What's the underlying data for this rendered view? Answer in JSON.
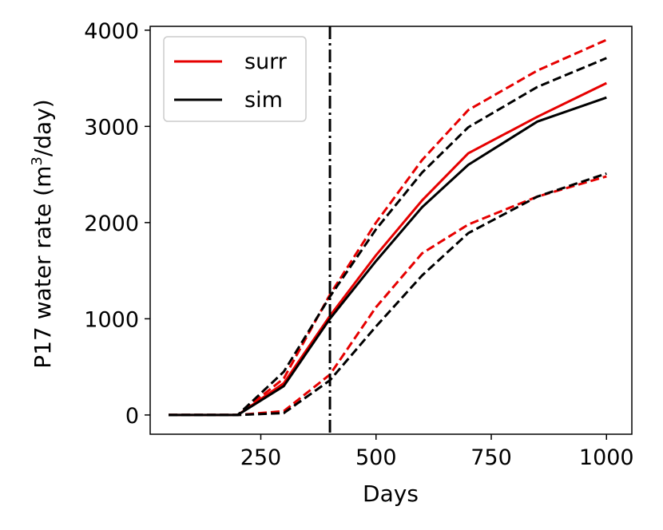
{
  "chart_data": {
    "type": "line",
    "title": "",
    "xlabel": "Days",
    "ylabel_prefix": "P17 water rate (m",
    "ylabel_sup": "3",
    "ylabel_suffix": "/day)",
    "xlim": [
      10,
      1055
    ],
    "ylim": [
      -200,
      4040
    ],
    "xticks": [
      250,
      500,
      750,
      1000
    ],
    "xtick_labels": [
      "250",
      "500",
      "750",
      "1000"
    ],
    "yticks": [
      0,
      1000,
      2000,
      3000,
      4000
    ],
    "ytick_labels": [
      "0",
      "1000",
      "2000",
      "3000",
      "4000"
    ],
    "vline": {
      "x": 400,
      "style": "dashdot",
      "color": "#000000"
    },
    "legend": {
      "position": "top-left",
      "entries": [
        {
          "label": "surr",
          "color": "#e60000"
        },
        {
          "label": "sim",
          "color": "#000000"
        }
      ]
    },
    "series": [
      {
        "name": "surr",
        "role": "mean",
        "style": "solid",
        "color": "#e60000",
        "x": [
          50,
          200,
          300,
          400,
          500,
          600,
          700,
          850,
          1000
        ],
        "y": [
          0,
          0,
          330,
          1030,
          1660,
          2230,
          2720,
          3100,
          3450
        ]
      },
      {
        "name": "surr",
        "role": "upper",
        "style": "dashed",
        "color": "#e60000",
        "x": [
          50,
          200,
          300,
          400,
          500,
          600,
          700,
          850,
          1000
        ],
        "y": [
          0,
          0,
          380,
          1250,
          2000,
          2650,
          3170,
          3580,
          3900
        ]
      },
      {
        "name": "surr",
        "role": "lower",
        "style": "dashed",
        "color": "#e60000",
        "x": [
          50,
          200,
          300,
          400,
          500,
          600,
          700,
          850,
          1000
        ],
        "y": [
          0,
          0,
          40,
          420,
          1120,
          1680,
          1980,
          2270,
          2480
        ]
      },
      {
        "name": "sim",
        "role": "mean",
        "style": "solid",
        "color": "#000000",
        "x": [
          50,
          200,
          300,
          400,
          500,
          600,
          700,
          850,
          1000
        ],
        "y": [
          0,
          0,
          300,
          1000,
          1600,
          2160,
          2600,
          3050,
          3300
        ]
      },
      {
        "name": "sim",
        "role": "upper",
        "style": "dashed",
        "color": "#000000",
        "x": [
          50,
          200,
          300,
          400,
          500,
          600,
          700,
          850,
          1000
        ],
        "y": [
          0,
          0,
          450,
          1230,
          1930,
          2520,
          2990,
          3410,
          3710
        ]
      },
      {
        "name": "sim",
        "role": "lower",
        "style": "dashed",
        "color": "#000000",
        "x": [
          50,
          200,
          300,
          400,
          500,
          600,
          700,
          850,
          1000
        ],
        "y": [
          0,
          0,
          20,
          360,
          920,
          1450,
          1890,
          2270,
          2510
        ]
      }
    ]
  }
}
